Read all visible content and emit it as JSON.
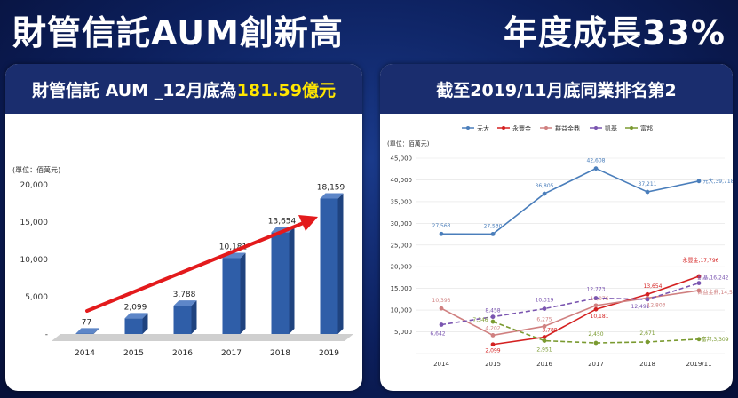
{
  "header": {
    "title_left": "財管信託AUM創新高",
    "title_right": "年度成長33%"
  },
  "left_panel": {
    "heading_prefix": "財管信託 AUM _12月底為",
    "heading_highlight": "181.59億元"
  },
  "right_panel": {
    "heading": "截至2019/11月底同業排名第2"
  },
  "chart_data": [
    {
      "type": "bar",
      "unit_label": "(單位：佰萬元)",
      "categories": [
        "2014",
        "2015",
        "2016",
        "2017",
        "2018",
        "2019"
      ],
      "values": [
        77,
        2099,
        3788,
        10181,
        13654,
        18159
      ],
      "data_labels": [
        "77",
        "2,099",
        "3,788",
        "10,181",
        "13,654",
        "18,159"
      ],
      "yticks": [
        "-",
        "5,000",
        "10,000",
        "15,000",
        "20,000"
      ],
      "ylim": [
        0,
        20000
      ],
      "bar_color": "#2f5ea8",
      "arrow_color": "#e31a1c"
    },
    {
      "type": "line",
      "unit_label": "(單位：佰萬元)",
      "categories": [
        "2014",
        "2015",
        "2016",
        "2017",
        "2018",
        "2019/11"
      ],
      "yticks": [
        "-",
        "5,000",
        "10,000",
        "15,000",
        "20,000",
        "25,000",
        "30,000",
        "35,000",
        "40,000",
        "45,000"
      ],
      "ylim": [
        0,
        45000
      ],
      "legend_position": "top",
      "series": [
        {
          "name": "元大",
          "color": "#4a7ebb",
          "values": [
            27563,
            27530,
            36805,
            42608,
            37211,
            39718
          ],
          "labels": [
            "27,563",
            "27,530",
            "36,805",
            "42,608",
            "37,211",
            "元大,39,718"
          ]
        },
        {
          "name": "永豐金",
          "color": "#d42020",
          "values": [
            null,
            2099,
            3788,
            10181,
            13654,
            17796
          ],
          "labels": [
            "",
            "2,099",
            "3,788",
            "10,181",
            "13,654",
            "永豐金,17,796"
          ]
        },
        {
          "name": "群益金鼎",
          "color": "#d08080",
          "values": [
            10393,
            4202,
            6275,
            11076,
            12803,
            14536
          ],
          "labels": [
            "10,393",
            "4,202",
            "6,275",
            "11,076",
            "12,803",
            "群益金鼎,14,536"
          ]
        },
        {
          "name": "凱基",
          "color": "#7a55b0",
          "values": [
            6642,
            8458,
            10319,
            12773,
            12491,
            16242
          ],
          "labels": [
            "6,642",
            "8,458",
            "10,319",
            "12,773",
            "12,491",
            "凱基,16,242"
          ]
        },
        {
          "name": "富邦",
          "color": "#7a9a30",
          "values": [
            null,
            7346,
            2951,
            2450,
            2671,
            3309
          ],
          "labels": [
            "",
            "7,346",
            "2,951",
            "2,450",
            "2,671",
            "富邦,3,309"
          ]
        }
      ]
    }
  ]
}
